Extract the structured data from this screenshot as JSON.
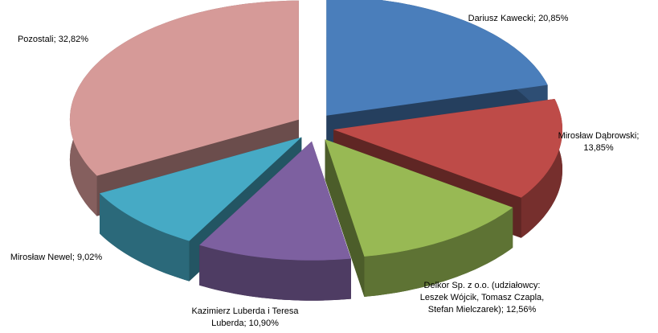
{
  "chart_data": {
    "type": "pie3d",
    "categories": [
      "Dariusz Kawecki",
      "Mirosław Dąbrowski",
      "Delkor Sp. z o.o. (udziałowcy: Leszek Wójcik, Tomasz Czapla, Stefan Mielczarek)",
      "Kazimierz Luberda i Teresa Luberda",
      "Mirosław Newel",
      "Pozostali"
    ],
    "values": [
      20.85,
      13.85,
      12.56,
      10.9,
      9.02,
      32.82
    ],
    "value_labels": [
      "20,85%",
      "13,85%",
      "12,56%",
      "10,90%",
      "9,02%",
      "32,82%"
    ],
    "label_separator": "; ",
    "colors": [
      "#4a7ebb",
      "#be4b48",
      "#98b954",
      "#7d60a0",
      "#46aac5",
      "#d69a98"
    ]
  }
}
